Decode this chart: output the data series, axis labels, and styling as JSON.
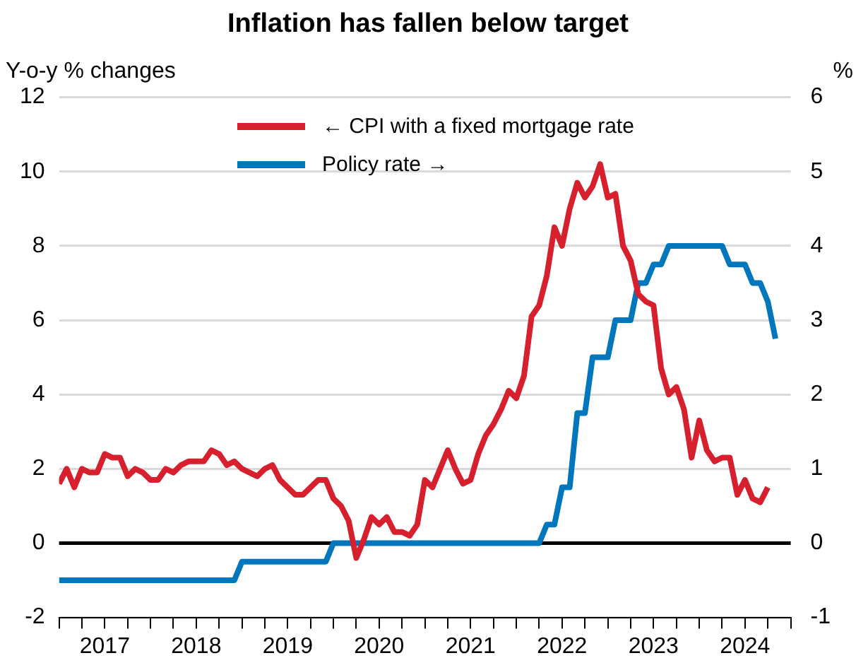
{
  "chart_data": {
    "type": "line",
    "title": "Inflation has fallen below target",
    "ylabel": "Y-o-y % changes",
    "y2label": "%",
    "x": [
      "2017-01",
      "2017-02",
      "2017-03",
      "2017-04",
      "2017-05",
      "2017-06",
      "2017-07",
      "2017-08",
      "2017-09",
      "2017-10",
      "2017-11",
      "2017-12",
      "2018-01",
      "2018-02",
      "2018-03",
      "2018-04",
      "2018-05",
      "2018-06",
      "2018-07",
      "2018-08",
      "2018-09",
      "2018-10",
      "2018-11",
      "2018-12",
      "2019-01",
      "2019-02",
      "2019-03",
      "2019-04",
      "2019-05",
      "2019-06",
      "2019-07",
      "2019-08",
      "2019-09",
      "2019-10",
      "2019-11",
      "2019-12",
      "2020-01",
      "2020-02",
      "2020-03",
      "2020-04",
      "2020-05",
      "2020-06",
      "2020-07",
      "2020-08",
      "2020-09",
      "2020-10",
      "2020-11",
      "2020-12",
      "2021-01",
      "2021-02",
      "2021-03",
      "2021-04",
      "2021-05",
      "2021-06",
      "2021-07",
      "2021-08",
      "2021-09",
      "2021-10",
      "2021-11",
      "2021-12",
      "2022-01",
      "2022-02",
      "2022-03",
      "2022-04",
      "2022-05",
      "2022-06",
      "2022-07",
      "2022-08",
      "2022-09",
      "2022-10",
      "2022-11",
      "2022-12",
      "2023-01",
      "2023-02",
      "2023-03",
      "2023-04",
      "2023-05",
      "2023-06",
      "2023-07",
      "2023-08",
      "2023-09",
      "2023-10",
      "2023-11",
      "2023-12",
      "2024-01",
      "2024-02",
      "2024-03",
      "2024-04",
      "2024-05",
      "2024-06",
      "2024-07",
      "2024-08",
      "2024-09",
      "2024-10",
      "2024-11"
    ],
    "series": [
      {
        "name": "← CPI with a fixed mortgage rate",
        "color": "#d7202e",
        "values": [
          1.6,
          2.0,
          1.5,
          2.0,
          1.9,
          1.9,
          2.4,
          2.3,
          2.3,
          1.8,
          2.0,
          1.9,
          1.7,
          1.7,
          2.0,
          1.9,
          2.1,
          2.2,
          2.2,
          2.2,
          2.5,
          2.4,
          2.1,
          2.2,
          2.0,
          1.9,
          1.8,
          2.0,
          2.1,
          1.7,
          1.5,
          1.3,
          1.3,
          1.5,
          1.7,
          1.7,
          1.2,
          1.0,
          0.6,
          -0.4,
          0.1,
          0.7,
          0.5,
          0.7,
          0.3,
          0.3,
          0.2,
          0.5,
          1.7,
          1.5,
          2.0,
          2.5,
          2.0,
          1.6,
          1.7,
          2.4,
          2.9,
          3.2,
          3.6,
          4.1,
          3.9,
          4.5,
          6.1,
          6.4,
          7.2,
          8.5,
          8.0,
          9.0,
          9.7,
          9.3,
          9.6,
          10.2,
          9.3,
          9.4,
          8.0,
          7.6,
          6.7,
          6.5,
          6.4,
          4.7,
          4.0,
          4.2,
          3.6,
          2.3,
          3.3,
          2.5,
          2.2,
          2.3,
          2.3,
          1.3,
          1.7,
          1.2,
          1.1,
          1.5,
          null
        ]
      },
      {
        "name": "Policy rate →",
        "color": "#0077bd",
        "axis": "y2",
        "values": [
          -0.5,
          -0.5,
          -0.5,
          -0.5,
          -0.5,
          -0.5,
          -0.5,
          -0.5,
          -0.5,
          -0.5,
          -0.5,
          -0.5,
          -0.5,
          -0.5,
          -0.5,
          -0.5,
          -0.5,
          -0.5,
          -0.5,
          -0.5,
          -0.5,
          -0.5,
          -0.5,
          -0.5,
          -0.25,
          -0.25,
          -0.25,
          -0.25,
          -0.25,
          -0.25,
          -0.25,
          -0.25,
          -0.25,
          -0.25,
          -0.25,
          -0.25,
          0,
          0,
          0,
          0,
          0,
          0,
          0,
          0,
          0,
          0,
          0,
          0,
          0,
          0,
          0,
          0,
          0,
          0,
          0,
          0,
          0,
          0,
          0,
          0,
          0,
          0,
          0,
          0,
          0.25,
          0.25,
          0.75,
          0.75,
          1.75,
          1.75,
          2.5,
          2.5,
          2.5,
          3.0,
          3.0,
          3.0,
          3.5,
          3.5,
          3.75,
          3.75,
          4.0,
          4.0,
          4.0,
          4.0,
          4.0,
          4.0,
          4.0,
          4.0,
          3.75,
          3.75,
          3.75,
          3.5,
          3.5,
          3.25,
          2.75
        ]
      }
    ],
    "xlim": [
      "2017-01",
      "2025-01"
    ],
    "xticks": [
      {
        "value": "2017-01",
        "label": null
      },
      {
        "value": "2017-04",
        "label": null
      },
      {
        "value": "2017-07",
        "label": "2017"
      },
      {
        "value": "2017-10",
        "label": null
      },
      {
        "value": "2018-01",
        "label": null
      },
      {
        "value": "2018-04",
        "label": null
      },
      {
        "value": "2018-07",
        "label": "2018"
      },
      {
        "value": "2018-10",
        "label": null
      },
      {
        "value": "2019-01",
        "label": null
      },
      {
        "value": "2019-04",
        "label": null
      },
      {
        "value": "2019-07",
        "label": "2019"
      },
      {
        "value": "2019-10",
        "label": null
      },
      {
        "value": "2020-01",
        "label": null
      },
      {
        "value": "2020-04",
        "label": null
      },
      {
        "value": "2020-07",
        "label": "2020"
      },
      {
        "value": "2020-10",
        "label": null
      },
      {
        "value": "2021-01",
        "label": null
      },
      {
        "value": "2021-04",
        "label": null
      },
      {
        "value": "2021-07",
        "label": "2021"
      },
      {
        "value": "2021-10",
        "label": null
      },
      {
        "value": "2022-01",
        "label": null
      },
      {
        "value": "2022-04",
        "label": null
      },
      {
        "value": "2022-07",
        "label": "2022"
      },
      {
        "value": "2022-10",
        "label": null
      },
      {
        "value": "2023-01",
        "label": null
      },
      {
        "value": "2023-04",
        "label": null
      },
      {
        "value": "2023-07",
        "label": "2023"
      },
      {
        "value": "2023-10",
        "label": null
      },
      {
        "value": "2024-01",
        "label": null
      },
      {
        "value": "2024-04",
        "label": null
      },
      {
        "value": "2024-07",
        "label": "2024"
      },
      {
        "value": "2024-10",
        "label": null
      },
      {
        "value": "2025-01",
        "label": null
      }
    ],
    "ylim": [
      -2,
      12
    ],
    "yticks": [
      -2,
      0,
      2,
      4,
      6,
      8,
      10,
      12
    ],
    "y2lim": [
      -1,
      6
    ],
    "y2ticks": [
      -1,
      0,
      1,
      2,
      3,
      4,
      5,
      6
    ],
    "ref_lines": [
      {
        "axis": "y",
        "value": 0,
        "color": "#000000"
      }
    ],
    "grid": "y",
    "legend": "top",
    "marker": "none",
    "line_style": "solid"
  }
}
